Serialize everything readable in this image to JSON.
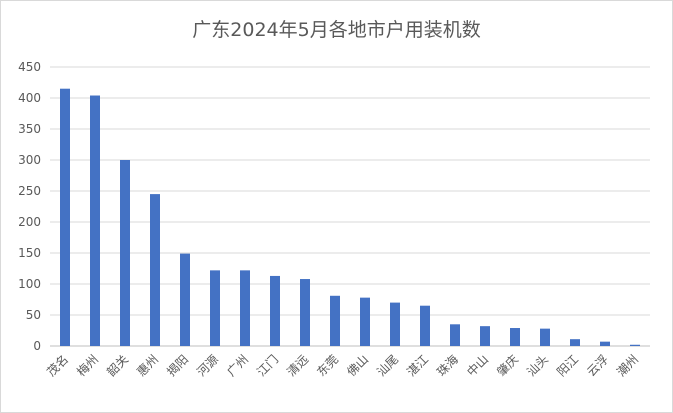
{
  "chart_data": {
    "type": "bar",
    "title": "广东2024年5月各地市户用装机数",
    "xlabel": "",
    "ylabel": "",
    "ylim": [
      0,
      450
    ],
    "yticks": [
      0,
      50,
      100,
      150,
      200,
      250,
      300,
      350,
      400,
      450
    ],
    "grid": true,
    "bar_color": "#4472c4",
    "categories": [
      "茂名",
      "梅州",
      "韶关",
      "惠州",
      "揭阳",
      "河源",
      "广州",
      "江门",
      "清远",
      "东莞",
      "佛山",
      "汕尾",
      "湛江",
      "珠海",
      "中山",
      "肇庆",
      "汕头",
      "阳江",
      "云浮",
      "潮州"
    ],
    "values": [
      415,
      404,
      300,
      245,
      149,
      122,
      122,
      113,
      108,
      81,
      78,
      70,
      65,
      35,
      32,
      29,
      28,
      11,
      7,
      2
    ]
  }
}
